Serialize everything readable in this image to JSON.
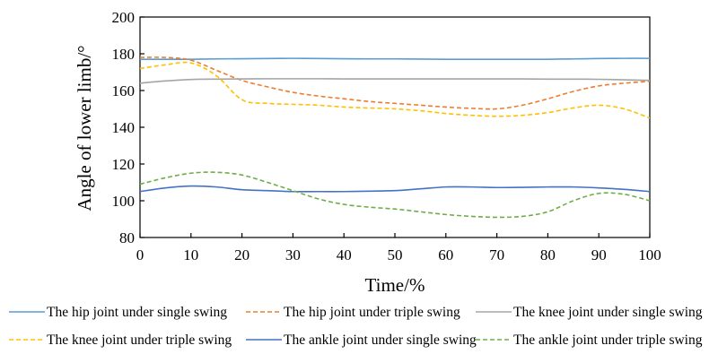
{
  "chart_data": {
    "type": "line",
    "title": "",
    "xlabel": "Time/%",
    "ylabel": "Angle of lower limb/°",
    "xlim": [
      0,
      100
    ],
    "ylim": [
      80,
      200
    ],
    "xticks": [
      0,
      10,
      20,
      30,
      40,
      50,
      60,
      70,
      80,
      90,
      100
    ],
    "yticks": [
      80,
      100,
      120,
      140,
      160,
      180,
      200
    ],
    "grid": false,
    "legend_position": "bottom",
    "x": [
      0,
      5,
      10,
      15,
      20,
      25,
      30,
      35,
      40,
      45,
      50,
      55,
      60,
      65,
      70,
      75,
      80,
      85,
      90,
      95,
      100
    ],
    "series": [
      {
        "name": "The hip joint under single swing",
        "color": "#5b9bd5",
        "dash": "solid",
        "values": [
          177,
          177,
          177,
          177.2,
          177.3,
          177.4,
          177.5,
          177.4,
          177.3,
          177.2,
          177.2,
          177.1,
          177,
          177,
          177,
          177,
          177,
          177.2,
          177.4,
          177.5,
          177.5
        ]
      },
      {
        "name": "The hip joint under triple swing",
        "color": "#ed7d31",
        "dash": "dashed",
        "values": [
          178,
          178,
          176.5,
          171,
          165.5,
          162,
          159,
          157,
          155.5,
          154,
          153,
          152,
          151,
          150.3,
          150,
          152,
          155.5,
          159.5,
          162.5,
          164,
          165
        ]
      },
      {
        "name": "The knee joint under single swing",
        "color": "#a5a5a5",
        "dash": "solid",
        "values": [
          164,
          165.2,
          166,
          166.2,
          166.3,
          166.4,
          166.4,
          166.4,
          166.3,
          166.3,
          166.3,
          166.3,
          166.3,
          166.3,
          166.3,
          166.3,
          166.2,
          166.2,
          166.1,
          165.8,
          165.5
        ]
      },
      {
        "name": "The knee joint under triple swing",
        "color": "#ffc000",
        "dash": "dashed",
        "values": [
          172,
          174,
          175,
          168,
          155,
          153,
          152.5,
          152,
          151,
          150.5,
          150,
          149,
          147.5,
          146.5,
          146,
          146.5,
          148,
          150.5,
          152,
          150,
          145
        ]
      },
      {
        "name": "The ankle joint under single swing",
        "color": "#4472c4",
        "dash": "solid",
        "values": [
          105,
          107,
          108,
          107.5,
          106,
          105.5,
          105,
          105,
          105,
          105.2,
          105.5,
          106.5,
          107.5,
          107.5,
          107.2,
          107.3,
          107.5,
          107.5,
          107,
          106.2,
          105
        ]
      },
      {
        "name": "The ankle joint under triple swing",
        "color": "#70ad47",
        "dash": "dashed",
        "values": [
          109,
          112.5,
          115,
          115.5,
          114,
          110,
          105.5,
          101,
          98,
          96.5,
          95.5,
          94,
          92.5,
          91.5,
          91,
          91.5,
          94,
          100,
          104,
          103.5,
          100
        ]
      }
    ]
  }
}
